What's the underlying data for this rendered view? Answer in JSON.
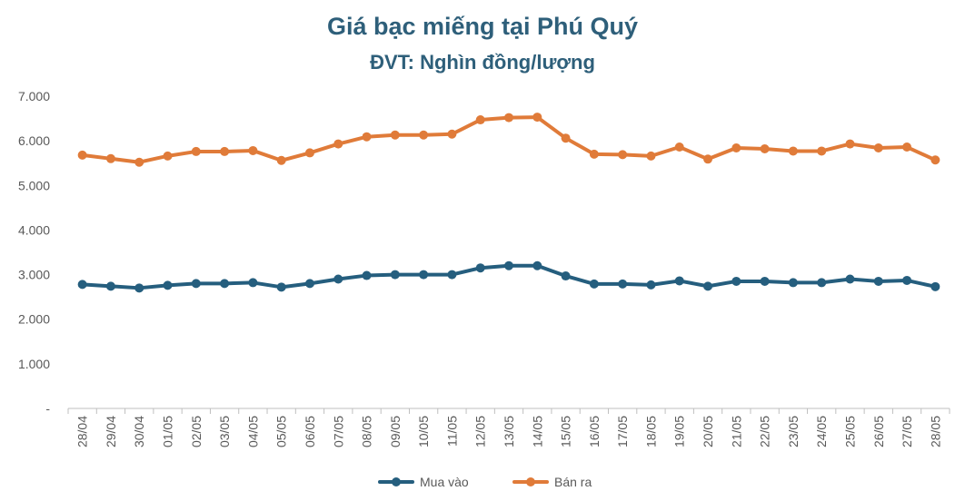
{
  "chart_data": {
    "type": "line",
    "title": "Giá bạc miếng tại Phú Quý",
    "subtitle": "ĐVT: Nghìn đồng/lượng",
    "categories": [
      "28/04",
      "29/04",
      "30/04",
      "01/05",
      "02/05",
      "03/05",
      "04/05",
      "05/05",
      "06/05",
      "07/05",
      "08/05",
      "09/05",
      "10/05",
      "11/05",
      "12/05",
      "13/05",
      "14/05",
      "15/05",
      "16/05",
      "17/05",
      "18/05",
      "19/05",
      "20/05",
      "21/05",
      "22/05",
      "23/05",
      "24/05",
      "25/05",
      "26/05",
      "27/05",
      "28/05"
    ],
    "series": [
      {
        "name": "Mua vào",
        "color": "#255E7E",
        "values": [
          2780,
          2740,
          2700,
          2760,
          2800,
          2800,
          2820,
          2720,
          2800,
          2900,
          2980,
          3000,
          3000,
          3000,
          3150,
          3200,
          3200,
          2970,
          2790,
          2790,
          2770,
          2860,
          2740,
          2850,
          2850,
          2820,
          2820,
          2900,
          2850,
          2870,
          2730
        ]
      },
      {
        "name": "Bán ra",
        "color": "#E07B39",
        "values": [
          5680,
          5600,
          5520,
          5660,
          5760,
          5760,
          5780,
          5560,
          5730,
          5930,
          6090,
          6130,
          6130,
          6150,
          6470,
          6520,
          6530,
          6060,
          5700,
          5690,
          5660,
          5860,
          5590,
          5840,
          5820,
          5770,
          5770,
          5930,
          5840,
          5860,
          5570
        ]
      }
    ],
    "ylim": [
      0,
      7000
    ],
    "yticks": [
      "-",
      "1.000",
      "2.000",
      "3.000",
      "4.000",
      "5.000",
      "6.000",
      "7.000"
    ],
    "grid": false,
    "legend_position": "bottom"
  }
}
